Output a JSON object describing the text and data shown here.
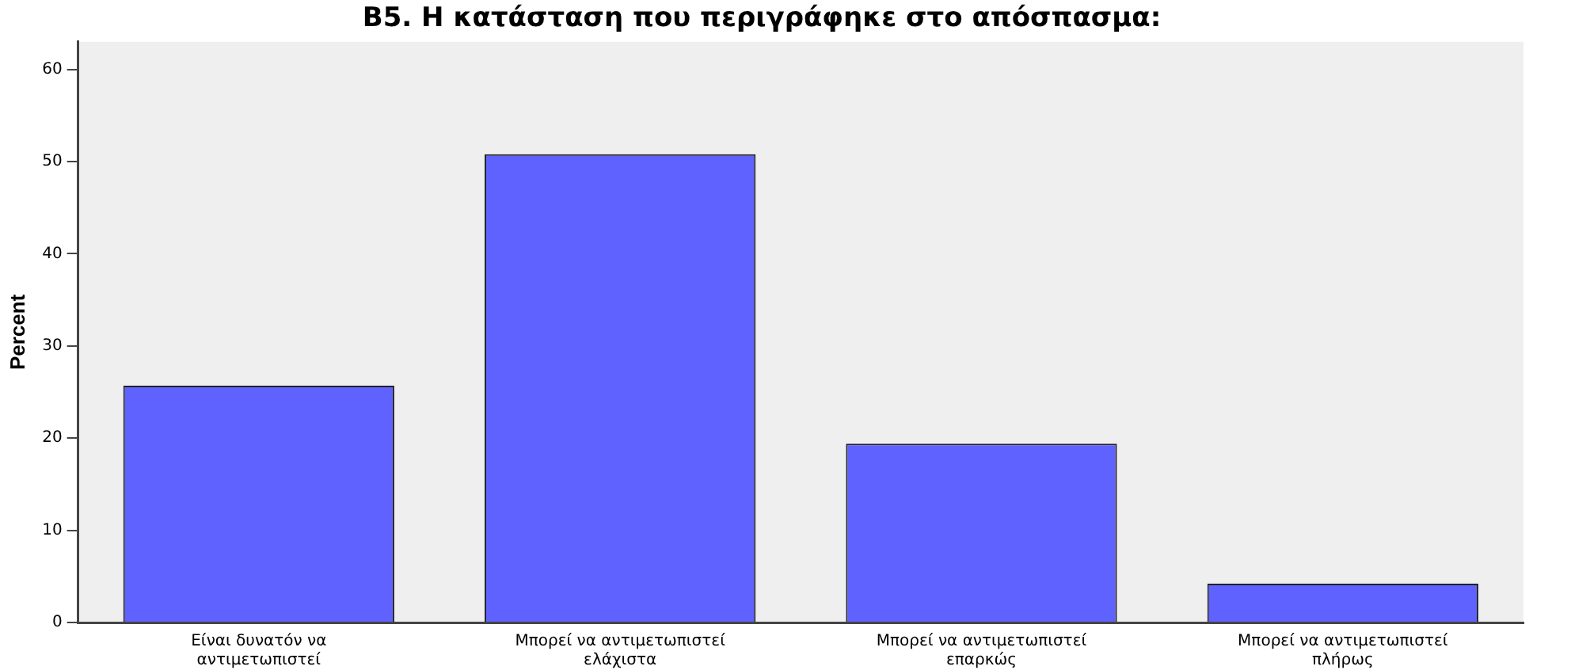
{
  "chart_data": {
    "type": "bar",
    "title": "Β5. Η κατάσταση που περιγράφηκε στο απόσπασμα:",
    "ylabel": "Percent",
    "categories": [
      "Είναι δυνατόν να αντιμετωπιστεί",
      "Μπορεί να αντιμετωπιστεί ελάχιστα",
      "Μπορεί να αντιμετωπιστεί επαρκώς",
      "Μπορεί να αντιμετωπιστεί πλήρως"
    ],
    "values": [
      25.7,
      50.8,
      19.4,
      4.2
    ],
    "color": "#5f62ff",
    "ylim": [
      0,
      63
    ],
    "yticks": [
      0,
      10,
      20,
      30,
      40,
      50,
      60
    ],
    "grid": false,
    "legend": false
  }
}
